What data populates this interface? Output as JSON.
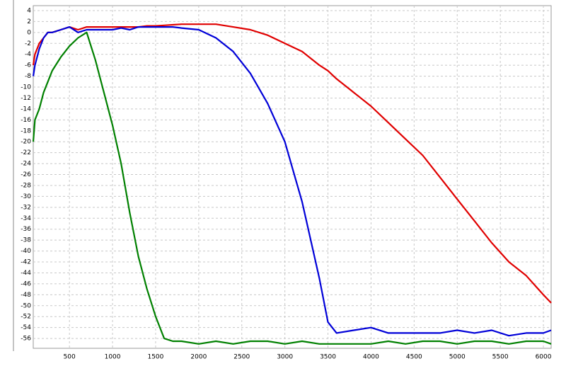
{
  "chart_data": {
    "type": "line",
    "x": [
      80,
      100,
      150,
      200,
      250,
      300,
      400,
      500,
      600,
      700,
      800,
      900,
      1000,
      1100,
      1200,
      1300,
      1400,
      1500,
      1600,
      1700,
      1800,
      2000,
      2200,
      2400,
      2600,
      2800,
      3000,
      3200,
      3400,
      3500,
      3600,
      3800,
      4000,
      4200,
      4400,
      4600,
      4800,
      5000,
      5200,
      5400,
      5600,
      5800,
      6000,
      6090
    ],
    "series": [
      {
        "color": "#e00000",
        "values": [
          -6,
          -4,
          -2,
          -1,
          0,
          0,
          0.5,
          1,
          0.5,
          1,
          1,
          1,
          1,
          1,
          1,
          1,
          1.2,
          1.2,
          1.3,
          1.4,
          1.5,
          1.5,
          1.5,
          1,
          0.5,
          -0.5,
          -2,
          -3.5,
          -6,
          -7,
          -8.5,
          -11,
          -13.5,
          -16.5,
          -19.5,
          -22.5,
          -26.5,
          -30.5,
          -34.5,
          -38.5,
          -42,
          -44.5,
          -48,
          -49.5
        ]
      },
      {
        "color": "#0000d8",
        "values": [
          -8,
          -6,
          -3,
          -1,
          0,
          0,
          0.5,
          1,
          0,
          0.5,
          0.5,
          0.5,
          0.5,
          0.8,
          0.5,
          1,
          1,
          1,
          1,
          1,
          0.8,
          0.5,
          -1,
          -3.5,
          -7.5,
          -13,
          -20,
          -31,
          -45,
          -53,
          -55,
          -54.5,
          -54,
          -55,
          -55,
          -55,
          -55,
          -54.5,
          -55,
          -54.5,
          -55.5,
          -55,
          -55,
          -54.5
        ]
      },
      {
        "color": "#008000",
        "values": [
          -20,
          -16,
          -14,
          -11,
          -9,
          -7,
          -4.5,
          -2.5,
          -1,
          0,
          -5,
          -11,
          -17,
          -24,
          -33,
          -41,
          -47,
          -52,
          -56,
          -56.5,
          -56.5,
          -57,
          -56.5,
          -57,
          -56.5,
          -56.5,
          -57,
          -56.5,
          -57,
          -57,
          -57,
          -57,
          -57,
          -56.5,
          -57,
          -56.5,
          -56.5,
          -57,
          -56.5,
          -56.5,
          -57,
          -56.5,
          -56.5,
          -57
        ]
      }
    ],
    "xlim": [
      80,
      6090
    ],
    "ylim": [
      -57.8,
      4.9
    ],
    "xticks": [
      500,
      1000,
      1500,
      2000,
      2500,
      3000,
      3500,
      4000,
      4500,
      5000,
      5500,
      6000
    ],
    "yticks": [
      -56,
      -54,
      -52,
      -50,
      -48,
      -46,
      -44,
      -42,
      -40,
      -38,
      -36,
      -34,
      -32,
      -30,
      -28,
      -26,
      -24,
      -22,
      -20,
      -18,
      -16,
      -14,
      -12,
      -10,
      -8,
      -6,
      -4,
      -2,
      0,
      2,
      4
    ],
    "grid": true
  }
}
